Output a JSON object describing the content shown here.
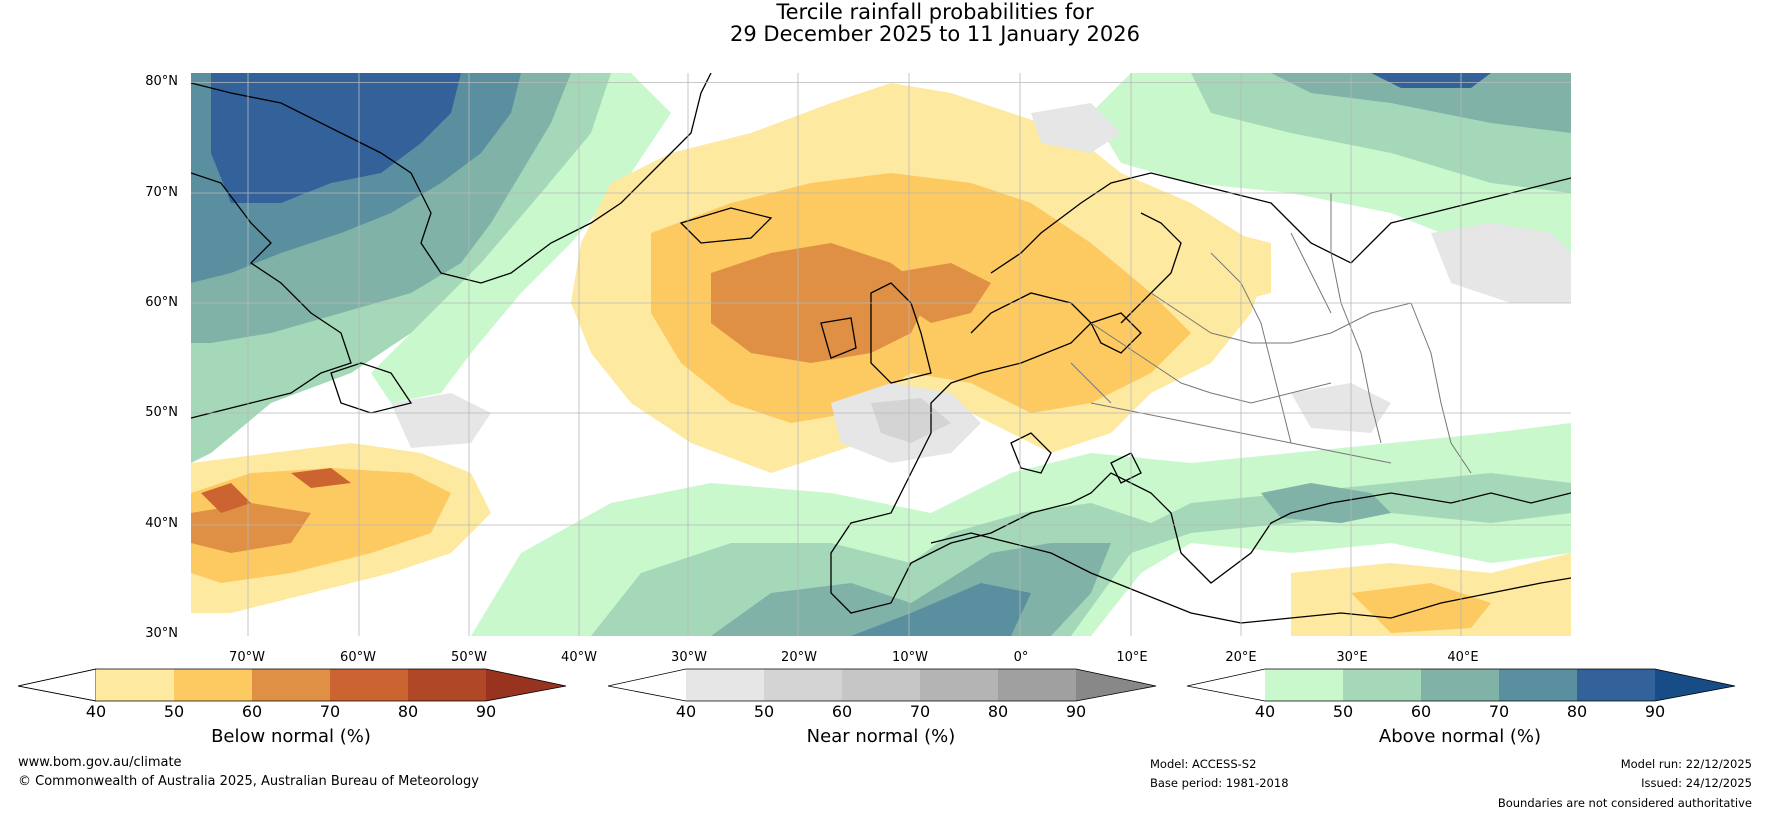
{
  "title": {
    "line1": "Tercile rainfall probabilities for",
    "line2": "29 December 2025 to 11 January 2026"
  },
  "map": {
    "lat_labels": [
      "80°N",
      "70°N",
      "60°N",
      "50°N",
      "40°N",
      "30°N"
    ],
    "lon_labels": [
      "70°W",
      "60°W",
      "50°W",
      "40°W",
      "30°W",
      "20°W",
      "10°W",
      "0°",
      "10°E",
      "20°E",
      "30°E",
      "40°E"
    ]
  },
  "colorbars": [
    {
      "label": "Below normal (%)",
      "ticks": [
        "40",
        "50",
        "60",
        "70",
        "80",
        "90"
      ],
      "colors": [
        "#ffffff",
        "#fee9a0",
        "#fdc961",
        "#df9044",
        "#cc6432",
        "#b04827",
        "#97331f"
      ]
    },
    {
      "label": "Near normal (%)",
      "ticks": [
        "40",
        "50",
        "60",
        "70",
        "80",
        "90"
      ],
      "colors": [
        "#ffffff",
        "#e6e6e6",
        "#d4d4d4",
        "#c6c6c6",
        "#b4b4b4",
        "#a0a0a0",
        "#888888"
      ]
    },
    {
      "label": "Above normal (%)",
      "ticks": [
        "40",
        "50",
        "60",
        "70",
        "80",
        "90"
      ],
      "colors": [
        "#ffffff",
        "#c8f8cc",
        "#a4d8b8",
        "#80b2a8",
        "#5a8fa0",
        "#33619a",
        "#174c86"
      ]
    }
  ],
  "footer": {
    "website": "www.bom.gov.au/climate",
    "copyright": "© Commonwealth of Australia 2025, Australian Bureau of Meteorology",
    "model": "Model: ACCESS-S2",
    "base_period": "Base period: 1981-2018",
    "model_run": "Model run: 22/12/2025",
    "issued": "Issued: 24/12/2025",
    "disclaimer": "Boundaries are not considered authoritative"
  }
}
